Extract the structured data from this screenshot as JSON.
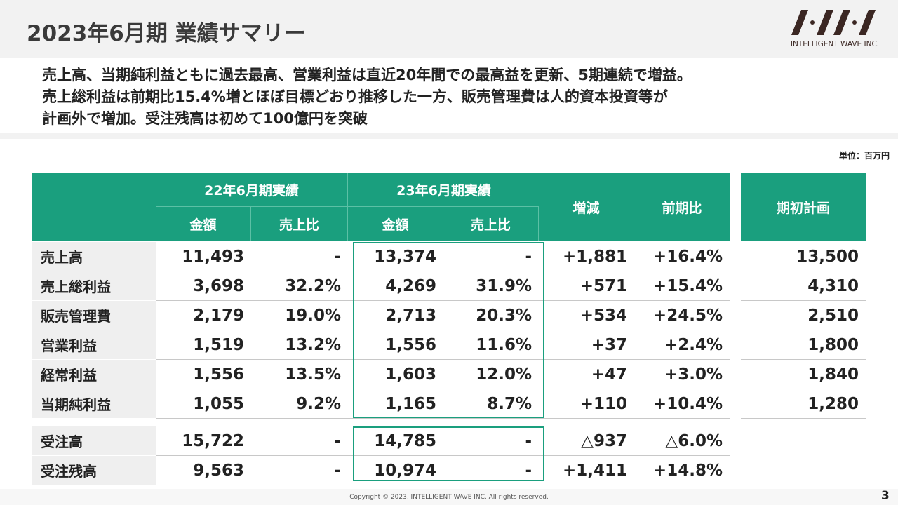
{
  "header": {
    "title": "2023年6月期 業績サマリー",
    "logo_text": "INTELLIGENT WAVE INC."
  },
  "summary": [
    "売上高、当期純利益ともに過去最高、営業利益は直近20年間での最高益を更新、5期連続で増益。",
    "売上総利益は前期比15.4%増とほぼ目標どおり推移した一方、販売管理費は人的資本投資等が",
    "計画外で増加。受注残高は初めて100億円を突破"
  ],
  "unit": "単位：百万円",
  "table": {
    "group_headers": [
      "22年6月期実績",
      "23年6月期実績"
    ],
    "sub_headers": [
      "金額",
      "売上比",
      "金額",
      "売上比"
    ],
    "headers": [
      "増減",
      "前期比"
    ],
    "plan_header": "期初計画",
    "rows": [
      [
        "売上高",
        "11,493",
        "-",
        "13,374",
        "-",
        "+1,881",
        "+16.4%"
      ],
      [
        "売上総利益",
        "3,698",
        "32.2%",
        "4,269",
        "31.9%",
        "+571",
        "+15.4%"
      ],
      [
        "販売管理費",
        "2,179",
        "19.0%",
        "2,713",
        "20.3%",
        "+534",
        "+24.5%"
      ],
      [
        "営業利益",
        "1,519",
        "13.2%",
        "1,556",
        "11.6%",
        "+37",
        "+2.4%"
      ],
      [
        "経常利益",
        "1,556",
        "13.5%",
        "1,603",
        "12.0%",
        "+47",
        "+3.0%"
      ],
      [
        "当期純利益",
        "1,055",
        "9.2%",
        "1,165",
        "8.7%",
        "+110",
        "+10.4%"
      ]
    ],
    "plan": [
      "13,500",
      "4,310",
      "2,510",
      "1,800",
      "1,840",
      "1,280"
    ],
    "order_rows": [
      [
        "受注高",
        "15,722",
        "-",
        "14,785",
        "-",
        "△937",
        "△6.0%"
      ],
      [
        "受注残高",
        "9,563",
        "-",
        "10,974",
        "-",
        "+1,411",
        "+14.8%"
      ]
    ]
  },
  "footer": {
    "copyright": "Copyright © 2023, INTELLIGENT WAVE INC. All rights reserved.",
    "page": "3"
  }
}
